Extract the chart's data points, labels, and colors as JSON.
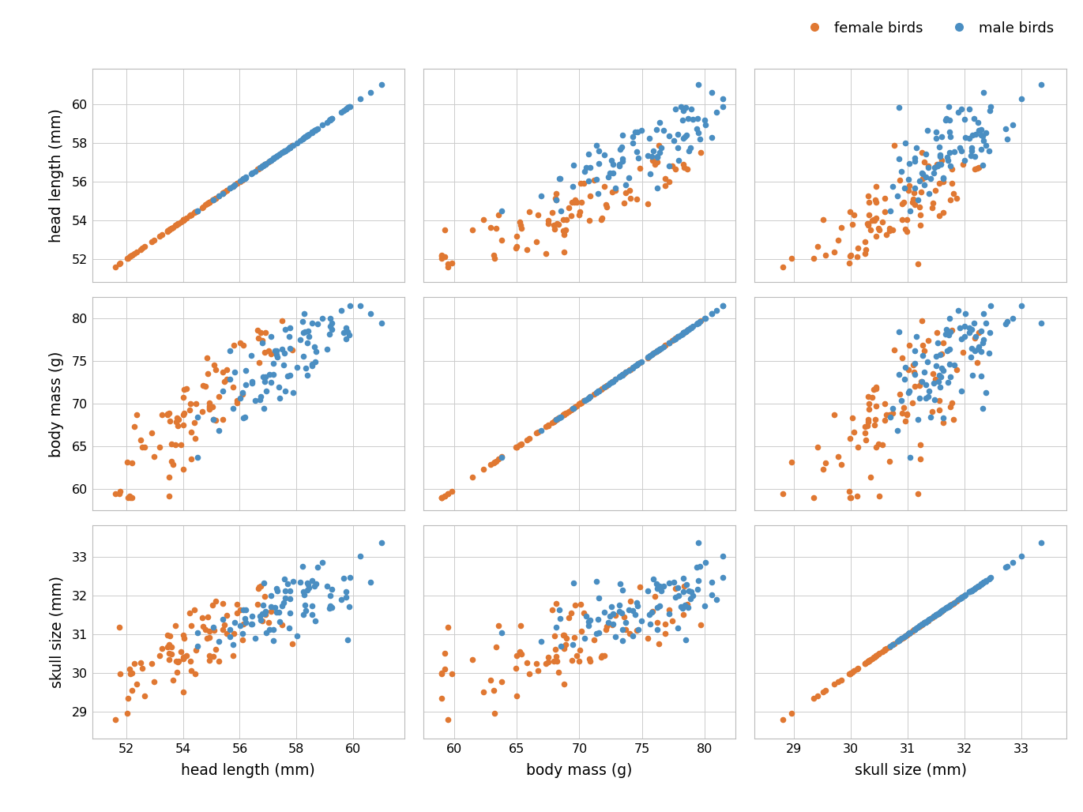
{
  "xlabels": [
    "head length (mm)",
    "body mass (g)",
    "skull size (mm)"
  ],
  "ylabels": [
    "head length (mm)",
    "body mass (g)",
    "skull size (mm)"
  ],
  "female_color": "#E07832",
  "male_color": "#4A8EC2",
  "female_label": "female birds",
  "male_label": "male birds",
  "axis_ranges": [
    [
      50.8,
      61.8
    ],
    [
      57.5,
      82.5
    ],
    [
      28.3,
      33.8
    ]
  ],
  "axis_ticks": [
    [
      52,
      54,
      56,
      58,
      60
    ],
    [
      60,
      65,
      70,
      75,
      80
    ],
    [
      29,
      30,
      31,
      32,
      33
    ]
  ]
}
